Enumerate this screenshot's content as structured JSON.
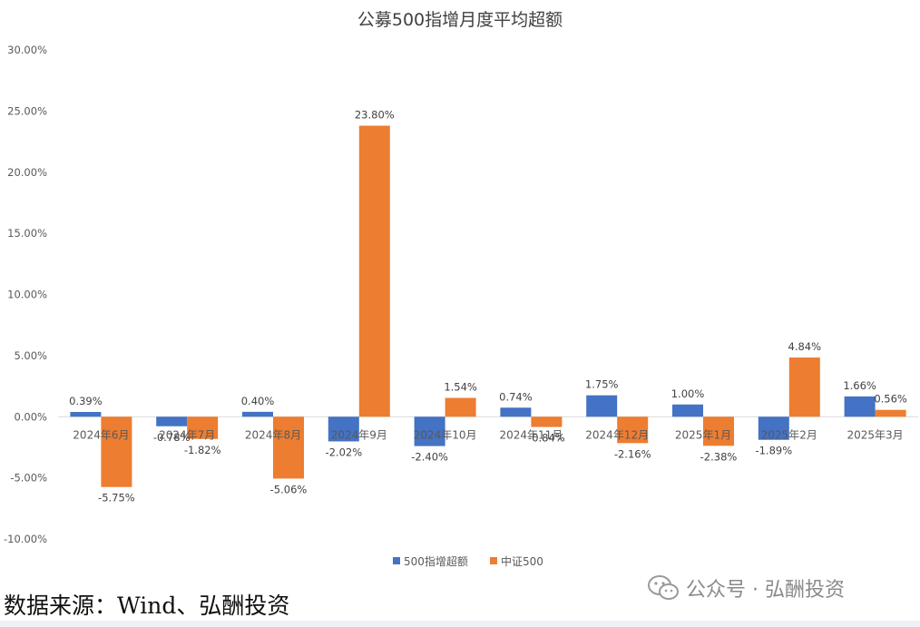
{
  "chart_data": {
    "type": "bar",
    "title": "公募500指增月度平均超额",
    "categories": [
      "2024年6月",
      "2024年7月",
      "2024年8月",
      "2024年9月",
      "2024年10月",
      "2024年11月",
      "2024年12月",
      "2025年1月",
      "2025年2月",
      "2025年3月"
    ],
    "series": [
      {
        "name": "500指增超额",
        "color": "#4472C4",
        "values": [
          0.39,
          -0.78,
          0.4,
          -2.02,
          -2.4,
          0.74,
          1.75,
          1.0,
          -1.89,
          1.66
        ]
      },
      {
        "name": "中证500",
        "color": "#ED7D31",
        "values": [
          -5.75,
          -1.82,
          -5.06,
          23.8,
          1.54,
          -0.84,
          -2.16,
          -2.38,
          4.84,
          0.56
        ]
      }
    ],
    "ylim": [
      -10,
      30
    ],
    "ytick_step": 5,
    "ytick_format": "percent-2dp",
    "grid": false,
    "legend_position": "bottom"
  },
  "footer": {
    "source": "数据来源：Wind、弘酬投资",
    "watermark": "公众号 · 弘酬投资",
    "watermark_icon": "wechat-icon"
  }
}
